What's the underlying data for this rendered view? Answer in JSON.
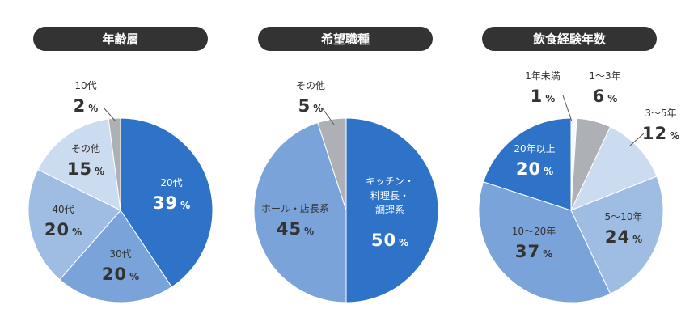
{
  "colors": {
    "blue": "#2f73c9",
    "mid": "#79a3d9",
    "light": "#9fbde3",
    "pale": "#ccdcf0",
    "gray": "#adb0b4",
    "white": "#f6f8fb",
    "pill": "#333333",
    "dark_text": "#333333"
  },
  "chart_data": [
    {
      "type": "pie",
      "title": "年齢層",
      "slices": [
        {
          "label": "20代",
          "value": 39,
          "pct": "%",
          "color": "blue"
        },
        {
          "label": "30代",
          "value": 20,
          "pct": "%",
          "color": "mid"
        },
        {
          "label": "40代",
          "value": 20,
          "pct": "%",
          "color": "light"
        },
        {
          "label": "その他",
          "value": 15,
          "pct": "%",
          "color": "pale"
        },
        {
          "label": "10代",
          "value": 2,
          "pct": "%",
          "color": "gray"
        }
      ]
    },
    {
      "type": "pie",
      "title": "希望職種",
      "slices": [
        {
          "label": "キッチン・\n料理長・\n調理系",
          "value": 50,
          "pct": "%",
          "color": "blue"
        },
        {
          "label": "ホール・店長系",
          "value": 45,
          "pct": "%",
          "color": "mid"
        },
        {
          "label": "その他",
          "value": 5,
          "pct": "%",
          "color": "gray"
        }
      ]
    },
    {
      "type": "pie",
      "title": "飲食経験年数",
      "slices": [
        {
          "label": "1年未満",
          "value": 1,
          "pct": "%",
          "color": "white"
        },
        {
          "label": "1～3年",
          "value": 6,
          "pct": "%",
          "color": "gray"
        },
        {
          "label": "3～5年",
          "value": 12,
          "pct": "%",
          "color": "pale"
        },
        {
          "label": "5～10年",
          "value": 24,
          "pct": "%",
          "color": "light"
        },
        {
          "label": "10～20年",
          "value": 37,
          "pct": "%",
          "color": "mid"
        },
        {
          "label": "20年以上",
          "value": 20,
          "pct": "%",
          "color": "blue"
        }
      ]
    }
  ]
}
